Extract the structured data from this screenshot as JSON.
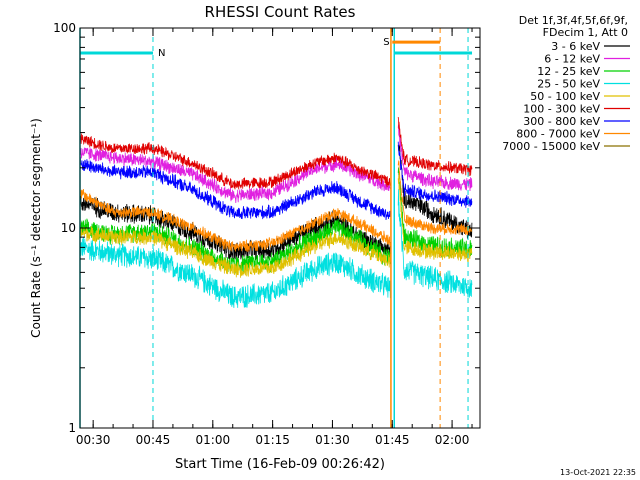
{
  "chart_data": {
    "type": "line",
    "title": "RHESSI Count Rates",
    "xlabel": "Start Time (16-Feb-09 00:26:42)",
    "ylabel": "Count Rate (s⁻¹ detector segment⁻¹)",
    "y_scale": "log",
    "ylim": [
      1,
      100
    ],
    "x_range": [
      "00:26:42",
      "02:07:00"
    ],
    "x_ticks": [
      "00:30",
      "00:45",
      "01:00",
      "01:15",
      "01:30",
      "01:45",
      "02:00"
    ],
    "y_ticks": [
      "1",
      "10",
      "100"
    ],
    "grid": false,
    "legend_position": "right-outside",
    "legend_header": [
      "Det 1f,3f,4f,5f,6f,9f,",
      "FDecim 1, Att 0"
    ],
    "timestamp": "13-Oct-2021 22:35",
    "flags": [
      {
        "label": "N",
        "color": "#00d8d8",
        "level": 75,
        "start": "00:26:42",
        "end": "00:45:00"
      },
      {
        "label": "S",
        "color": "#ff8800",
        "level": 85,
        "start": "01:45:00",
        "end": "01:57:00"
      },
      {
        "label": "",
        "color": "#00d8d8",
        "level": 75,
        "start": "01:45:30",
        "end": "02:05:00"
      }
    ],
    "vertical_markers": [
      {
        "time": "00:26:42",
        "color": "#00d8d8",
        "style": "solid"
      },
      {
        "time": "00:45:00",
        "color": "#00d8d8",
        "style": "dashed"
      },
      {
        "time": "01:44:40",
        "color": "#ff8800",
        "style": "solid"
      },
      {
        "time": "01:45:30",
        "color": "#00d8d8",
        "style": "solid"
      },
      {
        "time": "01:57:00",
        "color": "#ff8800",
        "style": "dashed"
      },
      {
        "time": "02:04:00",
        "color": "#00d8d8",
        "style": "dashed"
      }
    ],
    "gap": [
      "01:44:30",
      "01:46:30"
    ],
    "profile_times": [
      "00:26:42",
      "00:35:00",
      "00:45:00",
      "00:55:00",
      "01:05:00",
      "01:15:00",
      "01:25:00",
      "01:31:00",
      "01:37:00",
      "01:44:30",
      "01:46:30",
      "01:48:00",
      "01:55:00",
      "02:05:00"
    ],
    "series": [
      {
        "name": "3 - 6 keV",
        "color": "#000000",
        "values": [
          13.5,
          12.0,
          11.5,
          9.5,
          7.6,
          7.8,
          10.0,
          11.0,
          9.0,
          7.7,
          28,
          14.0,
          12.0,
          9.5
        ],
        "noise": 0.1
      },
      {
        "name": "6 - 12 keV",
        "color": "#e020e0",
        "values": [
          24.0,
          22.5,
          21.5,
          18.5,
          14.5,
          15.0,
          19.5,
          21.0,
          18.5,
          16.0,
          32,
          19.0,
          17.0,
          16.5
        ],
        "noise": 0.07
      },
      {
        "name": "12 - 25 keV",
        "color": "#00d000",
        "values": [
          10.0,
          9.3,
          9.7,
          8.0,
          6.5,
          6.8,
          8.8,
          10.0,
          8.7,
          7.0,
          20,
          9.0,
          8.2,
          7.8
        ],
        "noise": 0.1
      },
      {
        "name": "25 - 50 keV",
        "color": "#00e0e0",
        "values": [
          8.0,
          7.4,
          7.0,
          5.8,
          4.5,
          4.7,
          6.2,
          6.8,
          5.8,
          5.0,
          14,
          6.2,
          5.6,
          5.0
        ],
        "noise": 0.12
      },
      {
        "name": "50 - 100 keV",
        "color": "#e0c000",
        "values": [
          9.5,
          9.0,
          9.0,
          7.5,
          6.2,
          6.3,
          8.0,
          9.0,
          8.0,
          6.8,
          18,
          8.0,
          7.6,
          7.4
        ],
        "noise": 0.08
      },
      {
        "name": "100 - 300 keV",
        "color": "#e00000",
        "values": [
          28.0,
          25.0,
          25.0,
          21.0,
          16.5,
          17.0,
          21.0,
          22.5,
          19.5,
          17.0,
          34,
          22.0,
          20.5,
          19.5
        ],
        "noise": 0.06
      },
      {
        "name": "300 - 800 keV",
        "color": "#0000ff",
        "values": [
          21.0,
          19.0,
          19.0,
          15.5,
          11.8,
          12.0,
          15.0,
          16.0,
          13.5,
          11.5,
          26,
          15.5,
          14.5,
          13.5
        ],
        "noise": 0.07
      },
      {
        "name": "800 - 7000 keV",
        "color": "#ff8800",
        "values": [
          15.0,
          12.0,
          12.0,
          10.0,
          8.0,
          8.4,
          10.5,
          12.0,
          10.5,
          8.6,
          22,
          11.0,
          10.0,
          9.8
        ],
        "noise": 0.06
      },
      {
        "name": "7000 - 15000 keV",
        "color": "#8a7000",
        "values": [
          null,
          null,
          null,
          null,
          null,
          null,
          null,
          null,
          null,
          null,
          null,
          null,
          null,
          null
        ],
        "noise": 0
      }
    ]
  }
}
